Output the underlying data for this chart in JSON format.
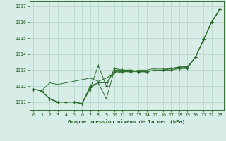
{
  "x": [
    0,
    1,
    2,
    3,
    4,
    5,
    6,
    7,
    8,
    9,
    10,
    11,
    12,
    13,
    14,
    15,
    16,
    17,
    18,
    19,
    20,
    21,
    22,
    23
  ],
  "series1": [
    1011.8,
    1011.7,
    1011.2,
    1011.0,
    1011.0,
    1011.0,
    1010.9,
    1011.8,
    1013.3,
    1012.0,
    1013.1,
    1013.0,
    1013.0,
    1012.9,
    1012.9,
    1013.0,
    1013.0,
    1013.0,
    1013.1,
    1013.1,
    1013.8,
    1014.9,
    1016.0,
    1016.8
  ],
  "series2": [
    1011.8,
    1011.7,
    1011.2,
    1011.0,
    1011.0,
    1011.0,
    1010.9,
    1012.0,
    1012.2,
    1011.2,
    1013.0,
    1013.0,
    1013.0,
    1012.9,
    1012.9,
    1013.0,
    1013.0,
    1013.1,
    1013.2,
    1013.2,
    1013.8,
    1014.9,
    1016.0,
    1016.8
  ],
  "series3": [
    1011.8,
    1011.7,
    1012.2,
    1012.1,
    1012.2,
    1012.3,
    1012.4,
    1012.5,
    1012.3,
    1012.5,
    1012.8,
    1012.9,
    1012.9,
    1013.0,
    1013.0,
    1013.1,
    1013.1,
    1013.1,
    1013.2,
    1013.2,
    1013.8,
    1014.9,
    1016.0,
    1016.8
  ],
  "series4": [
    1011.8,
    1011.7,
    1011.2,
    1011.0,
    1011.0,
    1011.0,
    1010.9,
    1011.9,
    1012.2,
    1012.2,
    1012.9,
    1012.9,
    1012.9,
    1012.9,
    1012.9,
    1013.0,
    1013.0,
    1013.1,
    1013.1,
    1013.2,
    1013.8,
    1014.9,
    1016.0,
    1016.8
  ],
  "bg_color": "#d8ede8",
  "grid_color": "#b8d8ce",
  "line_color": "#2d6e2d",
  "label_color": "#1a5c1a",
  "title": "Graphe pression niveau de la mer (hPa)",
  "ylim_min": 1010.5,
  "ylim_max": 1017.3,
  "xlim_min": -0.5,
  "xlim_max": 23.5,
  "yticks": [
    1011,
    1012,
    1013,
    1014,
    1015,
    1016,
    1017
  ],
  "xticks": [
    0,
    1,
    2,
    3,
    4,
    5,
    6,
    7,
    8,
    9,
    10,
    11,
    12,
    13,
    14,
    15,
    16,
    17,
    18,
    19,
    20,
    21,
    22,
    23
  ]
}
